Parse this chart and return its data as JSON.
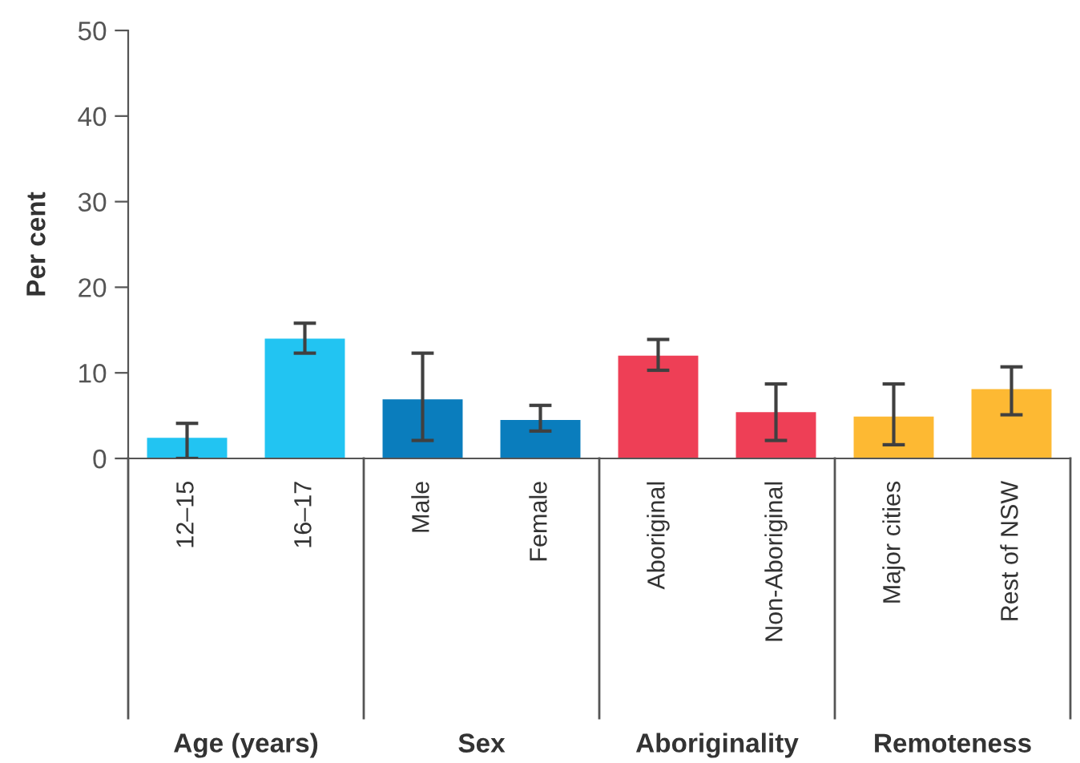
{
  "chart_data": {
    "type": "bar",
    "ylabel": "Per cent",
    "categories": [
      "12–15",
      "16–17",
      "Male",
      "Female",
      "Aboriginal",
      "Non-Aboriginal",
      "Major cities",
      "Rest of NSW"
    ],
    "values": [
      2.4,
      14.0,
      6.9,
      4.5,
      12.0,
      5.4,
      4.9,
      8.1
    ],
    "errors": [
      [
        0,
        4.1
      ],
      [
        12.3,
        15.8
      ],
      [
        2.1,
        12.3
      ],
      [
        3.2,
        6.2
      ],
      [
        10.3,
        13.9
      ],
      [
        2.1,
        8.7
      ],
      [
        1.6,
        8.7
      ],
      [
        5.1,
        10.7
      ]
    ],
    "colors": [
      "#22c4f2",
      "#22c4f2",
      "#0a7dbd",
      "#0a7dbd",
      "#ee3f56",
      "#ee3f56",
      "#fdb933",
      "#fdb933"
    ],
    "ylim": [
      0,
      50
    ],
    "yticks": [
      0,
      10,
      20,
      30,
      40,
      50
    ],
    "grid": false,
    "annotations": [
      "Age (years)",
      "Sex",
      "Aboriginality",
      "Remoteness"
    ]
  }
}
